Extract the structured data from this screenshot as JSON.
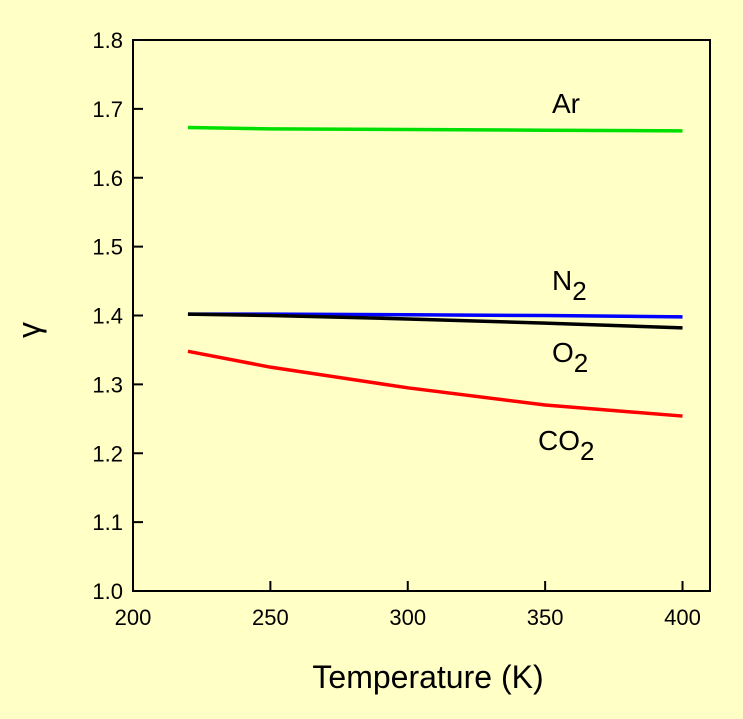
{
  "chart_data": {
    "type": "line",
    "x_label": "Temperature (K)",
    "y_label": "γ",
    "x": [
      220,
      250,
      300,
      350,
      400
    ],
    "series": [
      {
        "name": "Ar",
        "color": "#00e000",
        "values": [
          1.673,
          1.671,
          1.67,
          1.669,
          1.668
        ]
      },
      {
        "name": "N2",
        "color": "#0000ff",
        "values": [
          1.402,
          1.402,
          1.401,
          1.4,
          1.398
        ]
      },
      {
        "name": "O2",
        "color": "#000000",
        "values": [
          1.402,
          1.4,
          1.395,
          1.389,
          1.382
        ]
      },
      {
        "name": "CO2",
        "color": "#ff0000",
        "values": [
          1.348,
          1.325,
          1.295,
          1.27,
          1.254
        ]
      }
    ],
    "xlim": [
      200,
      410
    ],
    "ylim": [
      1.0,
      1.8
    ],
    "xticks": [
      200,
      250,
      300,
      350,
      400
    ],
    "yticks": [
      {
        "value": 1.0,
        "label": "1.0"
      },
      1.1,
      1.2,
      1.3,
      1.4,
      1.5,
      1.6,
      1.7,
      1.8
    ]
  }
}
